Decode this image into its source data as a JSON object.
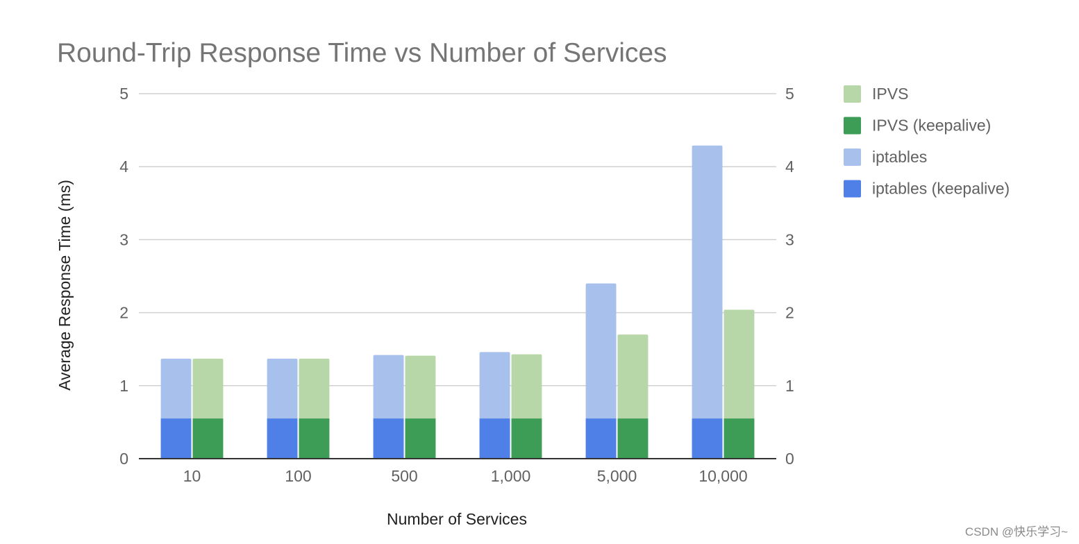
{
  "chart_data": {
    "type": "bar",
    "title": "Round-Trip Response Time vs Number of Services",
    "xlabel": "Number of Services",
    "ylabel": "Average Response Time (ms)",
    "ylim": [
      0,
      5
    ],
    "yticks": [
      "0",
      "1",
      "2",
      "3",
      "4",
      "5"
    ],
    "secondary_yticks": [
      "0",
      "1",
      "2",
      "3",
      "4",
      "5"
    ],
    "grid": true,
    "legend_position": "right",
    "categories": [
      "10",
      "100",
      "500",
      "1,000",
      "5,000",
      "10,000"
    ],
    "series": [
      {
        "name": "IPVS",
        "color": "#b7d7a8",
        "values": [
          1.37,
          1.37,
          1.41,
          1.43,
          1.7,
          2.04
        ]
      },
      {
        "name": "IPVS (keepalive)",
        "color": "#3d9c56",
        "values": [
          0.55,
          0.55,
          0.55,
          0.55,
          0.55,
          0.55
        ]
      },
      {
        "name": "iptables",
        "color": "#a8c0ec",
        "values": [
          1.37,
          1.37,
          1.42,
          1.46,
          2.4,
          4.29
        ]
      },
      {
        "name": "iptables (keepalive)",
        "color": "#4f80e8",
        "values": [
          0.55,
          0.55,
          0.55,
          0.55,
          0.55,
          0.55
        ]
      }
    ],
    "bar_groups": [
      {
        "back": "iptables",
        "front": "iptables (keepalive)"
      },
      {
        "back": "IPVS",
        "front": "IPVS (keepalive)"
      }
    ],
    "legend_order": [
      "IPVS",
      "IPVS (keepalive)",
      "iptables",
      "iptables (keepalive)"
    ]
  },
  "watermark": "CSDN @快乐学习~",
  "colors": {
    "grid": "#d0d0d0",
    "baseline": "#333333",
    "bar_gap": "#ffffff"
  }
}
